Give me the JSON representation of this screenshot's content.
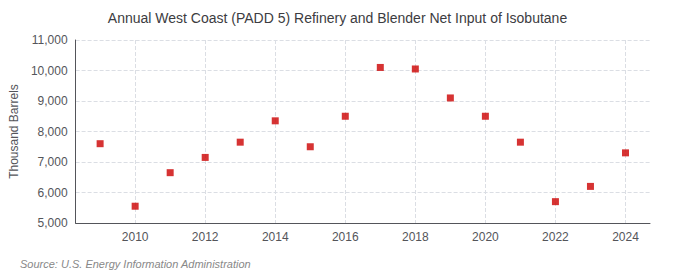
{
  "chart_data": {
    "type": "scatter",
    "title": "Annual West Coast (PADD 5) Refinery and Blender Net Input of Isobutane",
    "ylabel": "Thousand Barrels",
    "annotation": "Source: U.S. Energy Information Administration",
    "x": [
      2009,
      2010,
      2011,
      2012,
      2013,
      2014,
      2015,
      2016,
      2017,
      2018,
      2019,
      2020,
      2021,
      2022,
      2023,
      2024
    ],
    "values": [
      7600,
      5550,
      6650,
      7150,
      7650,
      8350,
      7500,
      8500,
      10100,
      10050,
      9100,
      8500,
      7650,
      5700,
      6200,
      7300
    ],
    "color": "#cc0000",
    "marker": "square",
    "xlim": [
      2008.3,
      2024.7
    ],
    "xticks": [
      2010,
      2012,
      2014,
      2016,
      2018,
      2020,
      2022,
      2024
    ],
    "ylim": [
      5000,
      11000
    ],
    "yticks": [
      {
        "value": 5000,
        "label": "5,000"
      },
      {
        "value": 6000,
        "label": "6,000"
      },
      {
        "value": 7000,
        "label": "7,000"
      },
      {
        "value": 8000,
        "label": "8,000"
      },
      {
        "value": 9000,
        "label": "9,000"
      },
      {
        "value": 10000,
        "label": "10,000"
      },
      {
        "value": 11000,
        "label": "11,000"
      }
    ],
    "grid": true
  }
}
